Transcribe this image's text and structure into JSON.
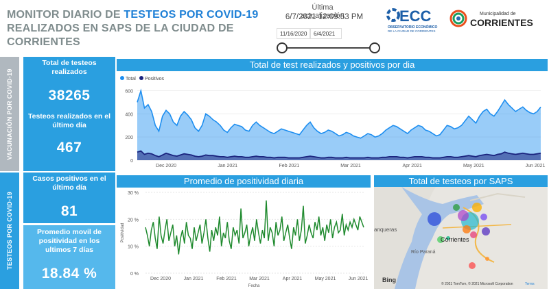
{
  "header": {
    "title_prefix": "MONITOR DIARIO DE ",
    "title_highlight": "TESTEOS POR COVID-19",
    "title_line2": "REALIZADOS EN SAPS DE LA CIUDAD DE CORRIENTES",
    "update_label": "Última actualización",
    "update_value": "6/7/2021 12:09:53 PM",
    "date_start": "11/16/2020",
    "date_end": "6/4/2021",
    "logo_ecc_text": "ECC",
    "logo_ecc_sub1": "OBSERVATORIO ECONÓMICO",
    "logo_ecc_sub2": "DE LA CIUDAD DE CORRIENTES",
    "logo_muni_small": "Municipalidad de",
    "logo_muni_big": "CORRIENTES"
  },
  "side_tabs": {
    "vacunacion": "VACUNACIÓN POR COVID-19",
    "testeos": "TESTEOS POR COVID-19"
  },
  "kpis": [
    {
      "label": "Total de testeos realizados",
      "value": "38265"
    },
    {
      "label": "Testeos realizados en el último día",
      "value": "467"
    },
    {
      "label": "Casos positivos en el último día",
      "value": "81"
    },
    {
      "label": "Promedio movil de positividad en los ultimos 7 días",
      "value": "18.84 %"
    }
  ],
  "chart_data": [
    {
      "type": "area",
      "title": "Total de test realizados y positivos por dia",
      "series": [
        {
          "name": "Total",
          "color": "#1d8ef0",
          "values": [
            500,
            600,
            450,
            480,
            420,
            300,
            250,
            380,
            430,
            400,
            330,
            300,
            380,
            420,
            390,
            350,
            280,
            250,
            300,
            400,
            380,
            350,
            330,
            300,
            260,
            240,
            280,
            310,
            300,
            290,
            260,
            250,
            300,
            330,
            300,
            280,
            260,
            240,
            230,
            250,
            270,
            260,
            250,
            240,
            230,
            220,
            260,
            300,
            330,
            280,
            250,
            230,
            240,
            260,
            250,
            230,
            210,
            220,
            240,
            230,
            210,
            200,
            190,
            210,
            230,
            220,
            200,
            210,
            230,
            260,
            280,
            300,
            290,
            270,
            250,
            230,
            260,
            280,
            300,
            290,
            260,
            250,
            230,
            210,
            220,
            260,
            300,
            290,
            270,
            280,
            300,
            340,
            380,
            350,
            320,
            380,
            420,
            440,
            400,
            380,
            420,
            470,
            520,
            480,
            450,
            420,
            440,
            460,
            430,
            410,
            400,
            420,
            460
          ]
        },
        {
          "name": "Positivos",
          "color": "#1a237e",
          "values": [
            70,
            80,
            50,
            60,
            55,
            40,
            30,
            45,
            60,
            50,
            40,
            35,
            45,
            55,
            50,
            45,
            35,
            30,
            35,
            45,
            40,
            40,
            35,
            30,
            30,
            25,
            30,
            35,
            30,
            30,
            25,
            25,
            30,
            35,
            30,
            30,
            25,
            25,
            20,
            25,
            25,
            25,
            20,
            20,
            20,
            20,
            25,
            30,
            35,
            30,
            25,
            20,
            20,
            25,
            25,
            20,
            20,
            20,
            25,
            20,
            20,
            20,
            20,
            20,
            25,
            20,
            20,
            20,
            25,
            25,
            30,
            30,
            30,
            25,
            25,
            20,
            25,
            30,
            30,
            30,
            25,
            25,
            20,
            20,
            20,
            25,
            30,
            30,
            25,
            25,
            30,
            35,
            40,
            35,
            30,
            40,
            45,
            50,
            45,
            40,
            50,
            55,
            70,
            60,
            55,
            50,
            55,
            60,
            55,
            50,
            50,
            55,
            60
          ]
        }
      ],
      "ylim": [
        0,
        650
      ],
      "yticks": [
        "0",
        "200",
        "400",
        "600"
      ],
      "xticks": [
        "Dec 2020",
        "Jan 2021",
        "Feb 2021",
        "Mar 2021",
        "Apr 2021",
        "May 2021",
        "Jun 2021"
      ]
    },
    {
      "type": "line",
      "title": "Promedio de positividad diaria",
      "xlabel": "Fecha",
      "ylabel": "Positividad",
      "series": [
        {
          "name": "Positividad",
          "color": "#1f8a2e",
          "values": [
            17,
            14,
            10,
            16,
            19,
            13,
            9,
            21,
            14,
            11,
            16,
            20,
            12,
            15,
            18,
            10,
            14,
            7,
            13,
            16,
            11,
            19,
            14,
            13,
            9,
            17,
            12,
            15,
            18,
            11,
            15,
            20,
            13,
            8,
            16,
            12,
            17,
            14,
            21,
            10,
            15,
            13,
            19,
            12,
            9,
            17,
            14,
            16,
            11,
            24,
            13,
            15,
            18,
            10,
            14,
            17,
            12,
            20,
            15,
            11,
            16,
            13,
            27,
            12,
            17,
            15,
            10,
            19,
            14,
            16,
            21,
            12,
            15,
            18,
            13,
            9,
            17,
            14,
            20,
            12,
            16,
            25,
            11,
            14,
            18,
            15,
            13,
            19,
            16,
            21,
            14,
            17,
            12,
            18,
            15,
            20,
            13,
            17,
            19,
            15,
            16,
            22,
            14,
            18,
            16,
            19,
            17,
            20,
            18,
            16,
            21,
            19,
            17
          ]
        }
      ],
      "ylim": [
        0,
        30
      ],
      "yticks": [
        "0 %",
        "10 %",
        "20 %",
        "30 %"
      ],
      "xticks": [
        "Dec 2020",
        "Jan 2021",
        "Feb 2021",
        "Mar 2021",
        "Apr 2021",
        "May 2021",
        "Jun 2021"
      ]
    }
  ],
  "map": {
    "title": "Total de testeos por SAPS",
    "label_city": "Corrientes",
    "label_river": "Río Paraná",
    "label_town": "anqueras",
    "brand": "Bing",
    "copyright": "© 2021 TomTom, © 2021 Microsoft Corporation",
    "terms": "Terms"
  }
}
